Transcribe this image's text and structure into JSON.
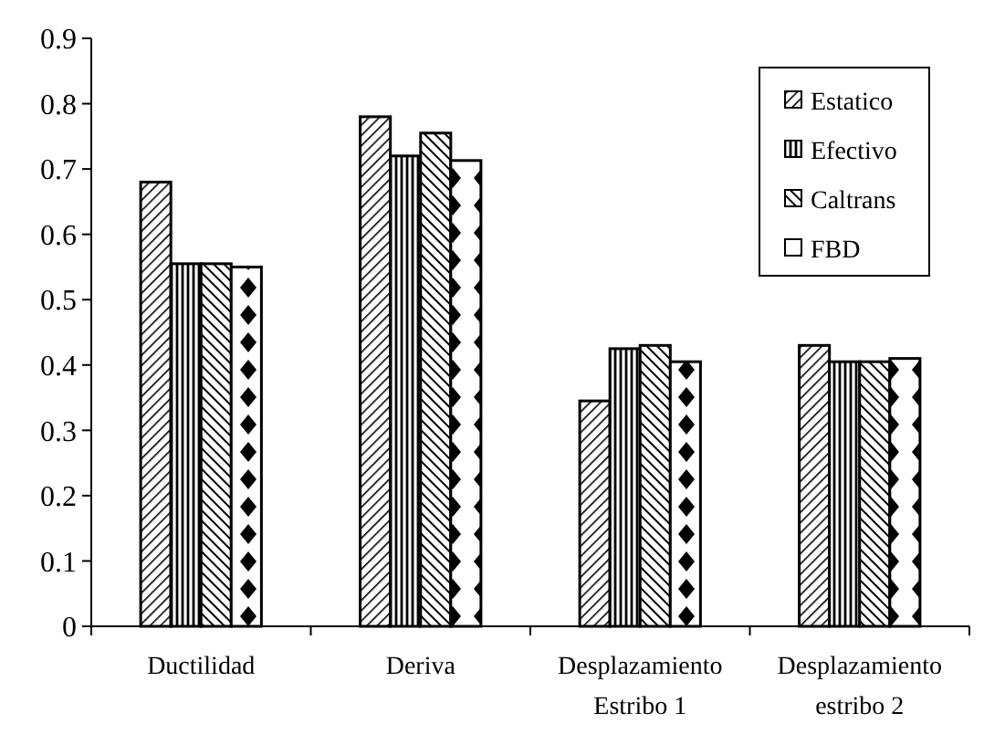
{
  "chart_data": {
    "type": "bar",
    "categories": [
      "Ductilidad",
      "Deriva",
      "Desplazamiento Estribo 1",
      "Desplazamiento estribo 2"
    ],
    "series": [
      {
        "name": "Estatico",
        "color": "#000000",
        "values": [
          0.68,
          0.78,
          0.345,
          0.43
        ]
      },
      {
        "name": "Efectivo",
        "color": "#000000",
        "values": [
          0.555,
          0.72,
          0.425,
          0.405
        ]
      },
      {
        "name": "Caltrans",
        "color": "#000000",
        "values": [
          0.555,
          0.755,
          0.43,
          0.405
        ]
      },
      {
        "name": "FBD",
        "color": "#000000",
        "values": [
          0.55,
          0.713,
          0.405,
          0.41
        ]
      }
    ],
    "ylim": [
      0,
      0.9
    ],
    "yticks": [
      0,
      0.1,
      0.2,
      0.3,
      0.4,
      0.5,
      0.6,
      0.7,
      0.8,
      0.9
    ],
    "legend": "top right"
  }
}
